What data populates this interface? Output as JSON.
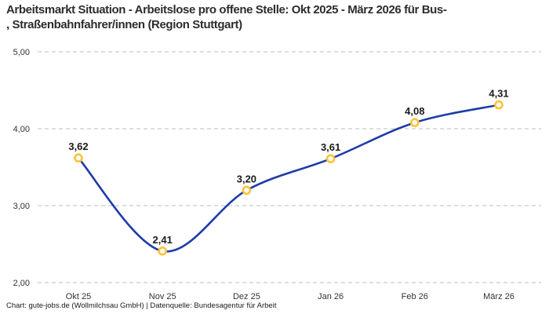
{
  "header": {
    "title_line1": "Arbeitsmarkt Situation - Arbeitslose pro offene Stelle: Okt 2025 - März 2026 für Bus-",
    "title_line2": ", Straßenbahnfahrer/innen (Region Stuttgart)"
  },
  "footer": {
    "credit": "Chart: gute-jobs.de (Wollmilchsau GmbH) | Datenquelle: Bundesagentur für Arbeit"
  },
  "chart_data": {
    "type": "line",
    "title": "Arbeitsmarkt Situation - Arbeitslose pro offene Stelle: Okt 2025 - März 2026 für Bus-, Straßenbahnfahrer/innen (Region Stuttgart)",
    "categories": [
      "Okt 25",
      "Nov 25",
      "Dez 25",
      "Jan 26",
      "Feb 26",
      "März 26"
    ],
    "series": [
      {
        "name": "Arbeitslose pro offene Stelle",
        "values": [
          3.62,
          2.41,
          3.2,
          3.61,
          4.08,
          4.31
        ],
        "point_labels": [
          "3,62",
          "2,41",
          "3,20",
          "3,61",
          "4,08",
          "4,31"
        ]
      }
    ],
    "xlabel": "",
    "ylabel": "",
    "ylim": [
      2.0,
      5.0
    ],
    "yticks": [
      {
        "value": 5.0,
        "label": "5,00"
      },
      {
        "value": 4.0,
        "label": "4,00"
      },
      {
        "value": 3.0,
        "label": "3,00"
      },
      {
        "value": 2.0,
        "label": "2,00"
      }
    ],
    "grid": "horizontal-dashed",
    "legend_position": "none",
    "colors": {
      "line": "#1e3ca8",
      "marker_ring": "#ffc233",
      "marker_fill": "#ffffff",
      "grid": "#c9c9c9",
      "point_label": "#1a1a1a",
      "tick_label": "#333333"
    }
  }
}
